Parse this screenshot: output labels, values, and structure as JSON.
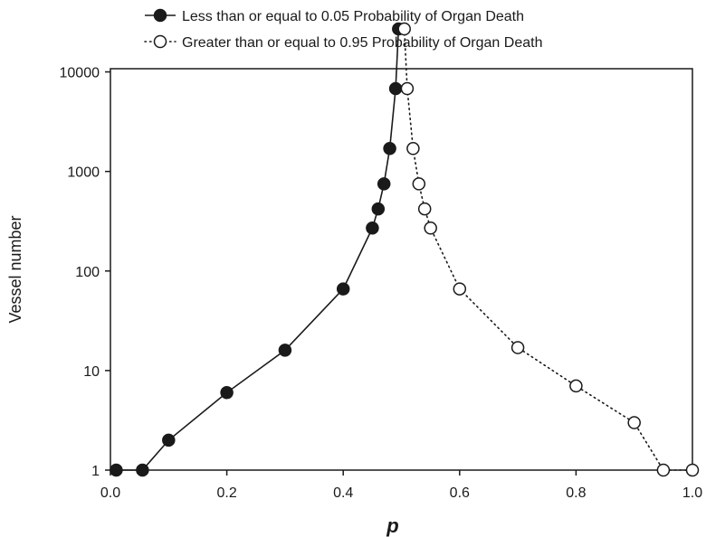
{
  "chart_data": {
    "type": "line",
    "xlabel": "p",
    "ylabel": "Vessel number",
    "xlim": [
      0.0,
      1.0
    ],
    "ylim": [
      1,
      30000
    ],
    "yscale": "log",
    "xticks": [
      "0.0",
      "0.2",
      "0.4",
      "0.6",
      "0.8",
      "1.0"
    ],
    "yticks": [
      "1",
      "10",
      "100",
      "1000",
      "10000"
    ],
    "legend_position": "top",
    "series": [
      {
        "name": "Less than or equal to 0.05 Probability of Organ Death",
        "marker": "filled-circle",
        "line": "solid",
        "x": [
          0.01,
          0.055,
          0.1,
          0.2,
          0.3,
          0.4,
          0.45,
          0.46,
          0.47,
          0.48,
          0.49,
          0.495
        ],
        "y": [
          1,
          1,
          2,
          6,
          16,
          66,
          270,
          420,
          750,
          1700,
          6800,
          27000
        ]
      },
      {
        "name": "Greater than or equal to 0.95 Probability of Organ Death",
        "marker": "open-circle",
        "line": "dotted",
        "x": [
          0.505,
          0.51,
          0.52,
          0.53,
          0.54,
          0.55,
          0.6,
          0.7,
          0.8,
          0.9,
          0.95,
          1.0
        ],
        "y": [
          27000,
          6800,
          1700,
          750,
          420,
          270,
          66,
          17,
          7,
          3,
          1,
          1
        ]
      }
    ]
  }
}
